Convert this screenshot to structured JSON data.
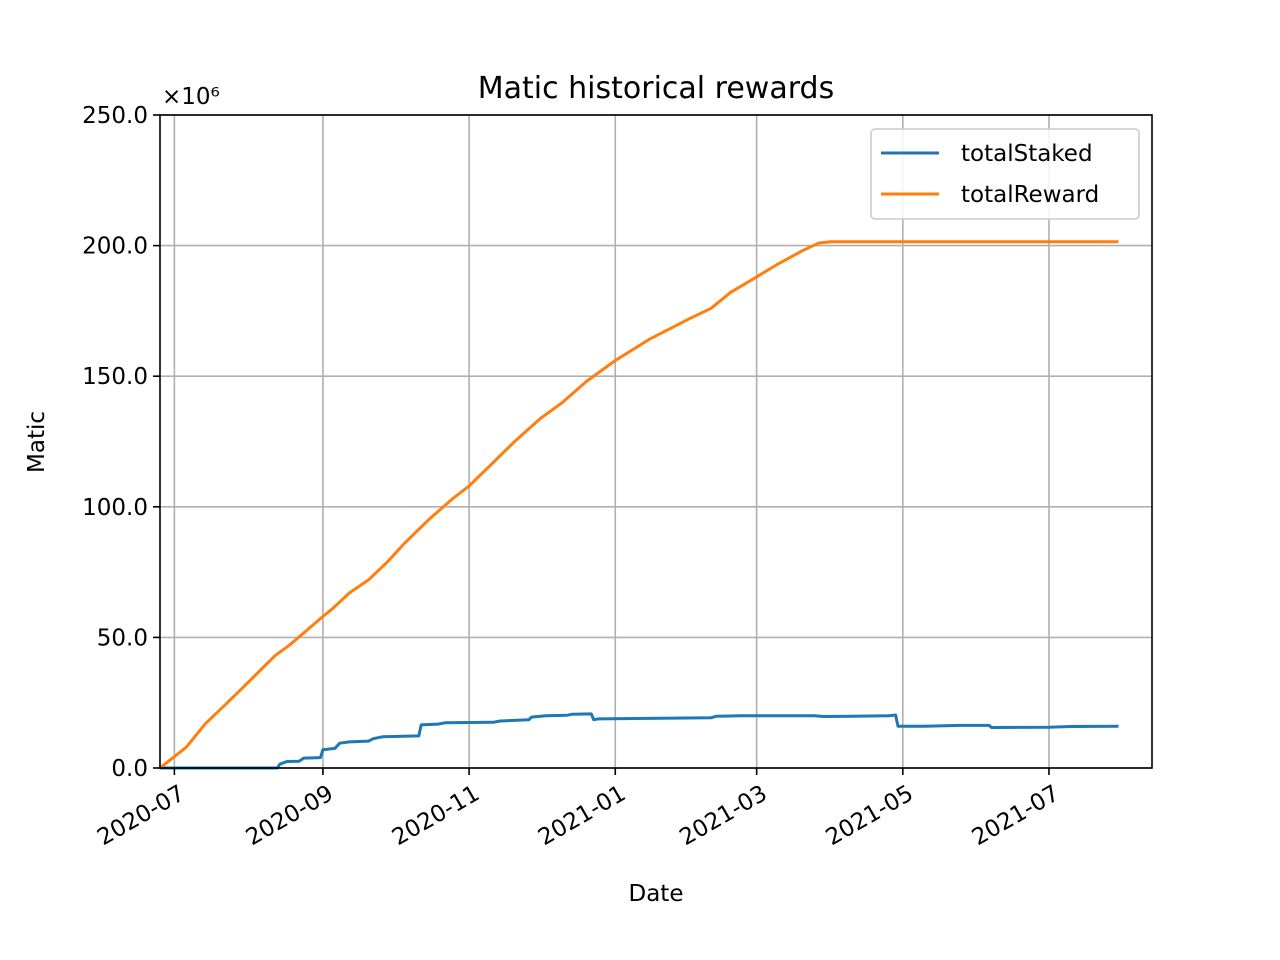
{
  "chart_data": {
    "type": "line",
    "title": "Matic historical rewards",
    "xlabel": "Date",
    "ylabel": "Matic",
    "y_offset_label": "×10⁶",
    "y_multiplier": 1000000,
    "xlim": [
      "2020-06-25",
      "2021-08-13"
    ],
    "ylim": [
      0,
      250
    ],
    "x_ticks": [
      "2020-07",
      "2020-09",
      "2020-11",
      "2021-01",
      "2021-03",
      "2021-05",
      "2021-07"
    ],
    "x_tick_dates": [
      "2020-07-01",
      "2020-09-01",
      "2020-11-01",
      "2021-01-01",
      "2021-03-01",
      "2021-05-01",
      "2021-07-01"
    ],
    "y_ticks": [
      "0.0",
      "50.0",
      "100.0",
      "150.0",
      "200.0",
      "250.0"
    ],
    "y_tick_values": [
      0,
      50,
      100,
      150,
      200,
      250
    ],
    "grid": true,
    "legend_position": "top-right",
    "series": [
      {
        "name": "totalStaked",
        "color": "#1f77b4",
        "points": [
          [
            "2020-06-25",
            0.0
          ],
          [
            "2020-08-13",
            0.0
          ],
          [
            "2020-08-14",
            1.5
          ],
          [
            "2020-08-17",
            2.5
          ],
          [
            "2020-08-22",
            2.6
          ],
          [
            "2020-08-24",
            3.8
          ],
          [
            "2020-08-31",
            4.0
          ],
          [
            "2020-09-01",
            7.0
          ],
          [
            "2020-09-06",
            7.5
          ],
          [
            "2020-09-08",
            9.5
          ],
          [
            "2020-09-12",
            10.0
          ],
          [
            "2020-09-20",
            10.3
          ],
          [
            "2020-09-22",
            11.2
          ],
          [
            "2020-09-26",
            12.0
          ],
          [
            "2020-10-11",
            12.3
          ],
          [
            "2020-10-12",
            16.5
          ],
          [
            "2020-10-19",
            16.8
          ],
          [
            "2020-10-22",
            17.3
          ],
          [
            "2020-11-11",
            17.5
          ],
          [
            "2020-11-14",
            18.0
          ],
          [
            "2020-11-21",
            18.3
          ],
          [
            "2020-11-26",
            18.5
          ],
          [
            "2020-11-27",
            19.5
          ],
          [
            "2020-12-03",
            20.0
          ],
          [
            "2020-12-12",
            20.2
          ],
          [
            "2020-12-14",
            20.6
          ],
          [
            "2020-12-22",
            20.7
          ],
          [
            "2020-12-23",
            18.5
          ],
          [
            "2020-12-25",
            18.8
          ],
          [
            "2021-01-15",
            19.0
          ],
          [
            "2021-02-10",
            19.2
          ],
          [
            "2021-02-12",
            19.8
          ],
          [
            "2021-02-18",
            19.9
          ],
          [
            "2021-02-22",
            20.0
          ],
          [
            "2021-03-25",
            20.0
          ],
          [
            "2021-03-29",
            19.7
          ],
          [
            "2021-04-10",
            19.8
          ],
          [
            "2021-04-25",
            20.0
          ],
          [
            "2021-04-28",
            20.3
          ],
          [
            "2021-04-29",
            16.0
          ],
          [
            "2021-05-10",
            16.0
          ],
          [
            "2021-05-25",
            16.3
          ],
          [
            "2021-06-06",
            16.3
          ],
          [
            "2021-06-07",
            15.5
          ],
          [
            "2021-07-01",
            15.6
          ],
          [
            "2021-07-10",
            15.9
          ],
          [
            "2021-07-30",
            16.0
          ]
        ]
      },
      {
        "name": "totalReward",
        "color": "#ff7f0e",
        "points": [
          [
            "2020-06-25",
            0.0
          ],
          [
            "2020-07-06",
            8.0
          ],
          [
            "2020-07-14",
            17.0
          ],
          [
            "2020-07-22",
            24.0
          ],
          [
            "2020-08-01",
            33.0
          ],
          [
            "2020-08-12",
            43.0
          ],
          [
            "2020-08-18",
            47.0
          ],
          [
            "2020-09-01",
            58.0
          ],
          [
            "2020-09-05",
            61.0
          ],
          [
            "2020-09-12",
            67.0
          ],
          [
            "2020-09-20",
            72.0
          ],
          [
            "2020-09-28",
            79.0
          ],
          [
            "2020-10-05",
            86.0
          ],
          [
            "2020-10-15",
            95.0
          ],
          [
            "2020-10-25",
            103.0
          ],
          [
            "2020-11-01",
            108.0
          ],
          [
            "2020-11-10",
            116.0
          ],
          [
            "2020-11-20",
            125.0
          ],
          [
            "2020-12-01",
            134.0
          ],
          [
            "2020-12-10",
            140.0
          ],
          [
            "2020-12-20",
            148.0
          ],
          [
            "2021-01-01",
            156.0
          ],
          [
            "2021-01-15",
            164.0
          ],
          [
            "2021-02-01",
            172.0
          ],
          [
            "2021-02-10",
            176.0
          ],
          [
            "2021-02-18",
            182.0
          ],
          [
            "2021-03-01",
            188.0
          ],
          [
            "2021-03-10",
            193.0
          ],
          [
            "2021-03-20",
            198.0
          ],
          [
            "2021-03-27",
            201.0
          ],
          [
            "2021-04-01",
            201.5
          ],
          [
            "2021-07-30",
            201.5
          ]
        ]
      }
    ]
  }
}
